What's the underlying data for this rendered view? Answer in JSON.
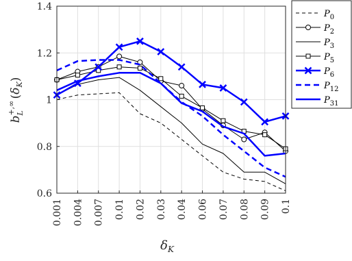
{
  "chart_data": {
    "type": "line",
    "categories": [
      "0.001",
      "0.004",
      "0.007",
      "0.01",
      "0.02",
      "0.03",
      "0.04",
      "0.06",
      "0.07",
      "0.08",
      "0.09",
      "0.1"
    ],
    "xlabel": "δK",
    "ylabel": "b_L^{+,∞}(δK)",
    "ylim": [
      0.6,
      1.4
    ],
    "yticks": [
      "0.6",
      "0.8",
      "1",
      "1.2",
      "1.4"
    ],
    "grid": true,
    "legend_position": "outside-right",
    "series": [
      {
        "name": "P0",
        "color": "#000000",
        "dash": "dashed",
        "marker": "none",
        "weight": "thin",
        "values": [
          1.0,
          1.02,
          1.025,
          1.03,
          0.94,
          0.9,
          0.83,
          0.76,
          0.69,
          0.66,
          0.65,
          0.61
        ]
      },
      {
        "name": "P2",
        "color": "#000000",
        "dash": "solid",
        "marker": "circle",
        "weight": "thin",
        "values": [
          1.085,
          1.12,
          1.14,
          1.185,
          1.16,
          1.08,
          1.06,
          0.96,
          0.89,
          0.83,
          0.86,
          0.78
        ]
      },
      {
        "name": "P3",
        "color": "#000000",
        "dash": "solid",
        "marker": "none",
        "weight": "thin",
        "values": [
          1.02,
          1.065,
          1.085,
          1.095,
          1.04,
          0.97,
          0.9,
          0.81,
          0.77,
          0.69,
          0.69,
          0.64
        ]
      },
      {
        "name": "P5",
        "color": "#000000",
        "dash": "solid",
        "marker": "square",
        "weight": "thin",
        "values": [
          1.085,
          1.105,
          1.125,
          1.14,
          1.135,
          1.09,
          1.015,
          0.965,
          0.91,
          0.865,
          0.85,
          0.79
        ]
      },
      {
        "name": "P6",
        "color": "#0000ff",
        "dash": "solid",
        "marker": "x",
        "weight": "thick",
        "values": [
          1.02,
          1.07,
          1.14,
          1.225,
          1.25,
          1.205,
          1.14,
          1.065,
          1.05,
          0.99,
          0.905,
          0.93
        ]
      },
      {
        "name": "P12",
        "color": "#0000ff",
        "dash": "dashed",
        "marker": "none",
        "weight": "thick",
        "values": [
          1.125,
          1.165,
          1.17,
          1.17,
          1.15,
          1.07,
          0.99,
          0.93,
          0.85,
          0.78,
          0.71,
          0.67
        ]
      },
      {
        "name": "P31",
        "color": "#0000ff",
        "dash": "solid",
        "marker": "none",
        "weight": "thick",
        "values": [
          1.04,
          1.08,
          1.1,
          1.115,
          1.115,
          1.07,
          0.985,
          0.95,
          0.885,
          0.855,
          0.76,
          0.77
        ]
      }
    ]
  }
}
